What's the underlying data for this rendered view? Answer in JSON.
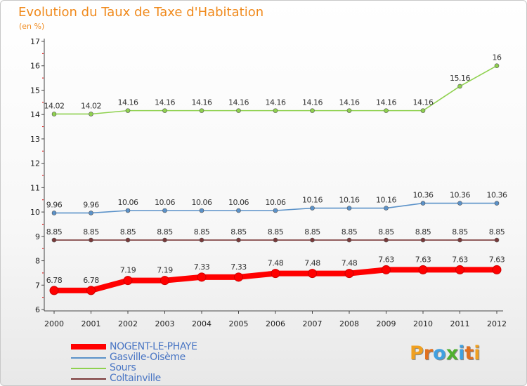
{
  "chart_data": {
    "type": "line",
    "title": "Evolution du Taux de Taxe d'Habitation",
    "subtitle": "(en %)",
    "xlabel": "",
    "ylabel": "",
    "x": [
      "2000",
      "2001",
      "2002",
      "2003",
      "2004",
      "2005",
      "2006",
      "2007",
      "2008",
      "2009",
      "2010",
      "2011",
      "2012"
    ],
    "ylim": [
      6,
      17
    ],
    "yticks": [
      "6",
      "7",
      "8",
      "9",
      "10",
      "11",
      "12",
      "13",
      "14",
      "15",
      "16",
      "17"
    ],
    "grid": false,
    "legend_position": "bottom-left",
    "series": [
      {
        "name": "Sours",
        "color": "#8fd14f",
        "values": [
          14.02,
          14.02,
          14.16,
          14.16,
          14.16,
          14.16,
          14.16,
          14.16,
          14.16,
          14.16,
          14.16,
          15.16,
          16
        ],
        "labels": [
          "14.02",
          "14.02",
          "14.16",
          "14.16",
          "14.16",
          "14.16",
          "14.16",
          "14.16",
          "14.16",
          "14.16",
          "14.16",
          "15.16",
          "16"
        ]
      },
      {
        "name": "Gasville-Oisème",
        "color": "#5b92c9",
        "values": [
          9.96,
          9.96,
          10.06,
          10.06,
          10.06,
          10.06,
          10.06,
          10.16,
          10.16,
          10.16,
          10.36,
          10.36,
          10.36
        ],
        "labels": [
          "9.96",
          "9.96",
          "10.06",
          "10.06",
          "10.06",
          "10.06",
          "10.06",
          "10.16",
          "10.16",
          "10.16",
          "10.36",
          "10.36",
          "10.36"
        ]
      },
      {
        "name": "Coltainville",
        "color": "#7a3a3a",
        "values": [
          8.85,
          8.85,
          8.85,
          8.85,
          8.85,
          8.85,
          8.85,
          8.85,
          8.85,
          8.85,
          8.85,
          8.85,
          8.85
        ],
        "labels": [
          "8.85",
          "8.85",
          "8.85",
          "8.85",
          "8.85",
          "8.85",
          "8.85",
          "8.85",
          "8.85",
          "8.85",
          "8.85",
          "8.85",
          "8.85"
        ]
      },
      {
        "name": "NOGENT-LE-PHAYE",
        "color": "#ff0000",
        "values": [
          6.78,
          6.78,
          7.19,
          7.19,
          7.33,
          7.33,
          7.48,
          7.48,
          7.48,
          7.63,
          7.63,
          7.63,
          7.63
        ],
        "labels": [
          "6.78",
          "6.78",
          "7.19",
          "7.19",
          "7.33",
          "7.33",
          "7.48",
          "7.48",
          "7.48",
          "7.63",
          "7.63",
          "7.63",
          "7.63"
        ]
      }
    ]
  },
  "legend": {
    "items": [
      {
        "label": "NOGENT-LE-PHAYE",
        "color": "#ff0000"
      },
      {
        "label": "Gasville-Oisème",
        "color": "#5b92c9"
      },
      {
        "label": "Sours",
        "color": "#8fd14f"
      },
      {
        "label": "Coltainville",
        "color": "#7a3a3a"
      }
    ]
  },
  "logo": {
    "letters": [
      "P",
      "r",
      "o",
      "x",
      "i",
      "t",
      "i"
    ],
    "colors": [
      "#f0a020",
      "#e07020",
      "#40a0e0",
      "#50b030",
      "#40a0e0",
      "#e07020",
      "#f0a020"
    ]
  }
}
